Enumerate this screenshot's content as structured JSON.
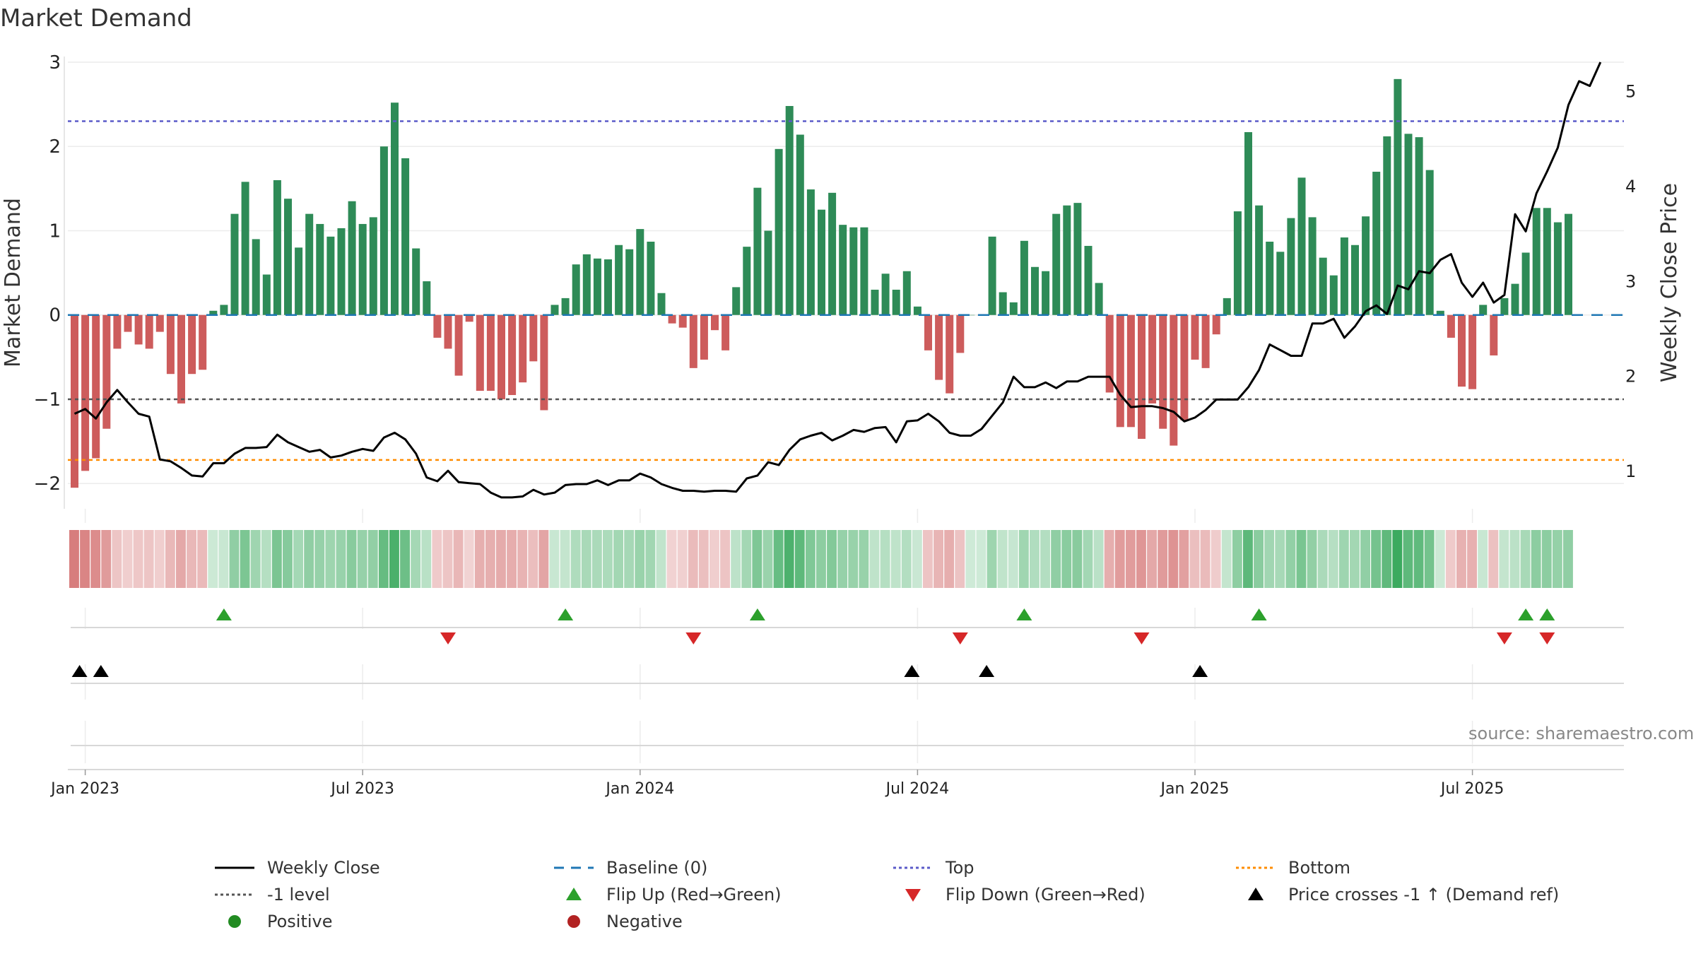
{
  "title": "Market Demand",
  "source": "source: sharemaestro.com",
  "colors": {
    "positive": "#2e8b57",
    "negative": "#cd5c5c",
    "price": "#000000",
    "baseline": "#1f77b4",
    "top": "#5b5bc9",
    "bottom": "#ff8c00",
    "minus1": "#555555",
    "flip_up": "#2ca02c",
    "flip_down": "#d62728",
    "legend_positive": "#228b22",
    "legend_negative": "#b22222"
  },
  "chart_data": {
    "type": "bar",
    "title": "Market Demand",
    "ylabel": "Market Demand",
    "y2label": "Weekly Close Price",
    "ylim": [
      -2.3,
      3.0
    ],
    "y2lim": [
      0.6,
      5.3
    ],
    "yticks": [
      3,
      2,
      1,
      0,
      -1,
      -2
    ],
    "ytick_labels": [
      "3",
      "2",
      "1",
      "0",
      "−1",
      "−2"
    ],
    "y2ticks": [
      5,
      4,
      3,
      2,
      1
    ],
    "y2tick_labels": [
      "5",
      "4",
      "3",
      "2",
      "1"
    ],
    "xtick_weeks": [
      1,
      27,
      53,
      79,
      105,
      131
    ],
    "xtick_labels": [
      "Jan 2023",
      "Jul 2023",
      "Jan 2024",
      "Jul 2024",
      "Jan 2025",
      "Jul 2025"
    ],
    "reference_lines": {
      "top": 2.3,
      "bottom": -1.72,
      "minus1": -1.0,
      "baseline": 0
    },
    "demand": [
      -2.05,
      -1.85,
      -1.7,
      -1.35,
      -0.4,
      -0.2,
      -0.35,
      -0.4,
      -0.2,
      -0.7,
      -1.05,
      -0.7,
      -0.65,
      0.05,
      0.12,
      1.2,
      1.58,
      0.9,
      0.48,
      1.6,
      1.38,
      0.8,
      1.2,
      1.08,
      0.93,
      1.03,
      1.35,
      1.08,
      1.16,
      2.0,
      2.52,
      1.86,
      0.79,
      0.4,
      -0.27,
      -0.4,
      -0.72,
      -0.08,
      -0.9,
      -0.9,
      -1.0,
      -0.95,
      -0.8,
      -0.55,
      -1.13,
      0.12,
      0.2,
      0.6,
      0.72,
      0.67,
      0.66,
      0.83,
      0.78,
      1.02,
      0.87,
      0.26,
      -0.1,
      -0.15,
      -0.63,
      -0.53,
      -0.18,
      -0.42,
      0.33,
      0.81,
      1.51,
      1.0,
      1.97,
      2.48,
      2.14,
      1.49,
      1.25,
      1.45,
      1.07,
      1.04,
      1.04,
      0.3,
      0.49,
      0.3,
      0.52,
      0.1,
      -0.42,
      -0.77,
      -0.93,
      -0.45,
      0.0,
      0.0,
      0.93,
      0.27,
      0.15,
      0.88,
      0.57,
      0.52,
      1.2,
      1.3,
      1.33,
      0.82,
      0.38,
      -0.92,
      -1.33,
      -1.33,
      -1.47,
      -1.05,
      -1.35,
      -1.55,
      -1.25,
      -0.53,
      -0.63,
      -0.23,
      0.2,
      1.23,
      2.17,
      1.3,
      0.87,
      0.75,
      1.15,
      1.63,
      1.16,
      0.68,
      0.47,
      0.92,
      0.83,
      1.17,
      1.7,
      2.12,
      2.8,
      2.15,
      2.11,
      1.72,
      0.05,
      -0.27,
      -0.85,
      -0.88,
      0.12,
      -0.48,
      0.2,
      0.37,
      0.74,
      1.27,
      1.27,
      1.1,
      1.2
    ],
    "heatmap_values": [
      -2.05,
      -1.85,
      -1.7,
      -1.35,
      -0.4,
      -0.2,
      -0.35,
      -0.4,
      -0.2,
      -0.7,
      -1.05,
      -0.7,
      -0.65,
      0.05,
      0.12,
      1.2,
      1.58,
      0.9,
      0.48,
      1.6,
      1.38,
      0.8,
      1.2,
      1.08,
      0.93,
      1.03,
      1.35,
      1.08,
      1.16,
      2.0,
      2.52,
      1.86,
      0.79,
      0.4,
      -0.27,
      -0.4,
      -0.72,
      -0.08,
      -0.9,
      -0.9,
      -1.0,
      -0.95,
      -0.8,
      -0.55,
      -1.13,
      0.12,
      0.2,
      0.6,
      0.72,
      0.67,
      0.66,
      0.83,
      0.78,
      1.02,
      0.87,
      0.26,
      -0.1,
      -0.15,
      -0.63,
      -0.53,
      -0.18,
      -0.42,
      0.33,
      0.81,
      1.51,
      1.0,
      1.97,
      2.48,
      2.14,
      1.49,
      1.25,
      1.45,
      1.07,
      1.04,
      1.04,
      0.3,
      0.49,
      0.3,
      0.52,
      0.1,
      -0.42,
      -0.77,
      -0.93,
      -0.45,
      0.0,
      0.0,
      0.93,
      0.27,
      0.15,
      0.88,
      0.57,
      0.52,
      1.2,
      1.3,
      1.33,
      0.82,
      0.38,
      -0.92,
      -1.33,
      -1.33,
      -1.47,
      -1.05,
      -1.35,
      -1.55,
      -1.25,
      -0.53,
      -0.63,
      -0.23,
      0.2,
      1.23,
      2.17,
      1.3,
      0.87,
      0.75,
      1.15,
      1.63,
      1.16,
      0.68,
      0.47,
      0.92,
      0.83,
      1.17,
      1.7,
      2.12,
      2.8,
      2.15,
      2.11,
      1.72,
      0.05,
      -0.27,
      -0.85,
      -0.88,
      0.12,
      -0.48,
      0.2,
      0.37,
      0.74,
      1.27,
      1.27,
      1.1,
      1.2
    ],
    "price": [
      1.6,
      1.65,
      1.55,
      1.72,
      1.85,
      1.72,
      1.6,
      1.57,
      1.12,
      1.1,
      1.03,
      0.95,
      0.94,
      1.08,
      1.08,
      1.18,
      1.24,
      1.24,
      1.25,
      1.38,
      1.3,
      1.25,
      1.2,
      1.22,
      1.14,
      1.16,
      1.2,
      1.23,
      1.21,
      1.35,
      1.4,
      1.33,
      1.18,
      0.93,
      0.89,
      1.0,
      0.88,
      0.87,
      0.86,
      0.77,
      0.72,
      0.72,
      0.73,
      0.8,
      0.75,
      0.77,
      0.85,
      0.86,
      0.86,
      0.9,
      0.85,
      0.9,
      0.9,
      0.97,
      0.93,
      0.86,
      0.82,
      0.79,
      0.79,
      0.78,
      0.79,
      0.79,
      0.78,
      0.92,
      0.95,
      1.09,
      1.06,
      1.22,
      1.33,
      1.37,
      1.4,
      1.32,
      1.37,
      1.43,
      1.41,
      1.45,
      1.46,
      1.3,
      1.52,
      1.53,
      1.6,
      1.52,
      1.4,
      1.37,
      1.37,
      1.44,
      1.58,
      1.72,
      1.99,
      1.88,
      1.88,
      1.93,
      1.87,
      1.94,
      1.94,
      1.99,
      1.99,
      1.99,
      1.8,
      1.67,
      1.68,
      1.68,
      1.66,
      1.62,
      1.52,
      1.56,
      1.64,
      1.75,
      1.75,
      1.75,
      1.88,
      2.06,
      2.33,
      2.27,
      2.21,
      2.21,
      2.55,
      2.55,
      2.6,
      2.4,
      2.52,
      2.68,
      2.74,
      2.65,
      2.95,
      2.91,
      3.1,
      3.08,
      3.22,
      3.28,
      2.98,
      2.83,
      2.98,
      2.77,
      2.85,
      3.7,
      3.52,
      3.92,
      4.15,
      4.4,
      4.85,
      5.1,
      5.05,
      5.3
    ],
    "flip_up": [
      14,
      46,
      64,
      89,
      111,
      136,
      138
    ],
    "flip_down": [
      35,
      58,
      83,
      100,
      134,
      138
    ],
    "price_cross": [
      1,
      3,
      79,
      86,
      106
    ],
    "legend": [
      "Weekly Close",
      "Baseline (0)",
      "Top",
      "Bottom",
      "-1 level",
      "Flip Up (Red→Green)",
      "Flip Down (Green→Red)",
      "Price crosses -1 ↑ (Demand ref)",
      "Positive",
      "Negative"
    ]
  }
}
